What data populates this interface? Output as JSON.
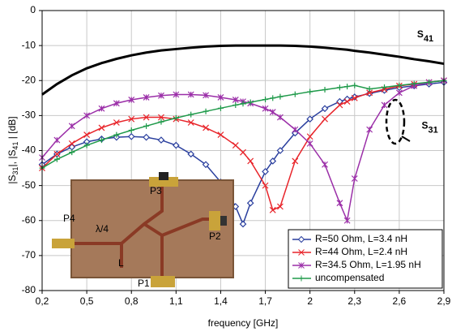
{
  "chart_data": {
    "type": "line",
    "x_label": "frequency [GHz]",
    "y_label_parts": [
      "|S",
      "31",
      "|, |S",
      "41",
      " | [dB]"
    ],
    "x": [
      0.2,
      0.3,
      0.4,
      0.5,
      0.6,
      0.7,
      0.8,
      0.9,
      1.0,
      1.1,
      1.2,
      1.3,
      1.4,
      1.5,
      1.55,
      1.6,
      1.7,
      1.75,
      1.8,
      1.9,
      2.0,
      2.1,
      2.2,
      2.25,
      2.3,
      2.4,
      2.5,
      2.6,
      2.7,
      2.8,
      2.9
    ],
    "series": [
      {
        "color": "#000000",
        "marker": "none",
        "values": [
          -24,
          -21,
          -18.5,
          -16.5,
          -15,
          -13.8,
          -12.8,
          -12,
          -11.4,
          -11,
          -10.6,
          -10.3,
          -10.1,
          -10,
          -10,
          -10,
          -10,
          -10,
          -10,
          -10.1,
          -10.3,
          -10.6,
          -11,
          -11.2,
          -11.5,
          -12,
          -12.6,
          -13.2,
          -13.9,
          -14.5,
          -15.2
        ]
      },
      {
        "name": "R=50 Ohm, L=3.4 nH",
        "color": "#2a3f9e",
        "marker": "diamond",
        "values": [
          -44,
          -41,
          -39,
          -37.5,
          -36.7,
          -36.2,
          -36,
          -36.2,
          -37,
          -38.5,
          -41,
          -44,
          -49,
          -56,
          -61,
          -55,
          -46,
          -43,
          -40,
          -35,
          -31,
          -28,
          -26,
          -25.3,
          -24.7,
          -23.7,
          -22.8,
          -22,
          -21.5,
          -21,
          -20.5
        ]
      },
      {
        "name": "R=44 Ohm, L=2.4 nH",
        "color": "#e8242a",
        "marker": "x",
        "values": [
          -45,
          -41,
          -38,
          -35.5,
          -33.5,
          -32,
          -31,
          -30.5,
          -30.5,
          -31,
          -32,
          -33.5,
          -35.5,
          -38.5,
          -40.5,
          -43,
          -50,
          -57,
          -56,
          -43,
          -36,
          -31,
          -27,
          -26,
          -25,
          -23.5,
          -22.5,
          -21.5,
          -21,
          -20.5,
          -20
        ]
      },
      {
        "name": "R=34.5 Ohm, L=1.95 nH",
        "color": "#9b2fa8",
        "marker": "asterisk",
        "values": [
          -42,
          -37,
          -33,
          -30,
          -28,
          -26.5,
          -25.5,
          -24.8,
          -24.3,
          -24,
          -24,
          -24.2,
          -24.8,
          -25.5,
          -26,
          -26.5,
          -28,
          -29,
          -30.5,
          -34,
          -38,
          -44,
          -55,
          -60,
          -48,
          -34,
          -27,
          -23.5,
          -21.5,
          -20.5,
          -20
        ]
      },
      {
        "name": "uncompensated",
        "color": "#1f9a4a",
        "marker": "plus",
        "values": [
          -45,
          -42.5,
          -40.5,
          -38.5,
          -37,
          -35.5,
          -34.2,
          -33,
          -31.8,
          -30.7,
          -29.7,
          -28.8,
          -27.9,
          -27,
          -26.6,
          -26.2,
          -25.4,
          -25,
          -24.6,
          -23.9,
          -23.2,
          -22.6,
          -22,
          -21.7,
          -21.4,
          -22.4,
          -21.9,
          -21.4,
          -20.9,
          -20.5,
          -20
        ]
      }
    ],
    "xlim": [
      0.2,
      2.9
    ],
    "xticks": [
      {
        "value": 0.2,
        "label": "0,2"
      },
      {
        "value": 0.5,
        "label": "0,5"
      },
      {
        "value": 0.8,
        "label": "0,8"
      },
      {
        "value": 1.1,
        "label": "1,1"
      },
      {
        "value": 1.4,
        "label": "1,4"
      },
      {
        "value": 1.7,
        "label": "1,7"
      },
      2,
      {
        "value": 2.3,
        "label": "2,3"
      },
      {
        "value": 2.6,
        "label": "2,6"
      },
      {
        "value": 2.9,
        "label": "2,9"
      }
    ],
    "ylim": [
      -80,
      0
    ],
    "yticks": [
      0,
      -10,
      -20,
      -30,
      -40,
      -50,
      -60,
      -70,
      -80
    ],
    "grid": true,
    "legend": "lower right",
    "annotations": [
      {
        "text": "S",
        "sub": "41",
        "x": 2.72,
        "y": -7
      },
      {
        "text": "S",
        "sub": "31",
        "x": 2.75,
        "y": -33
      }
    ]
  },
  "inset_labels": [
    "P3",
    "P4",
    "λ/4",
    "P2",
    "L",
    "P1"
  ]
}
